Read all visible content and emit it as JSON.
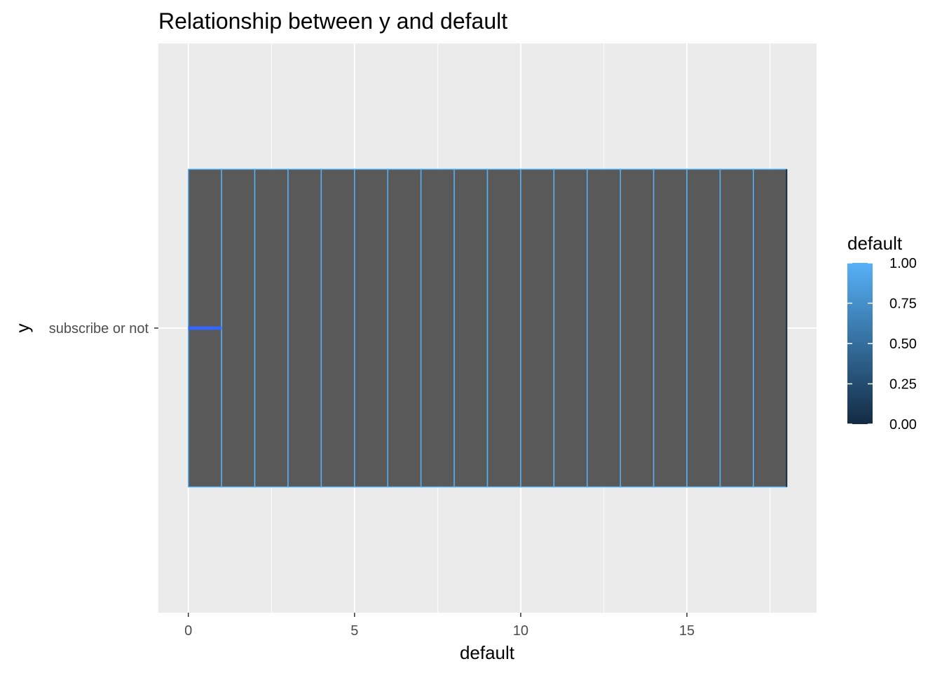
{
  "chart_data": {
    "type": "bar",
    "orientation": "horizontal",
    "title": "Relationship between y and default",
    "xlabel": "default",
    "ylabel": "y",
    "categories": [
      "subscribe or not"
    ],
    "xlim": [
      -0.9,
      18.9
    ],
    "x_ticks": [
      0,
      5,
      10,
      15
    ],
    "x_tick_labels": [
      "0",
      "5",
      "10",
      "15"
    ],
    "stack_segments": [
      0,
      1,
      2,
      3,
      4,
      5,
      6,
      7,
      8,
      9,
      10,
      11,
      12,
      13,
      14,
      15,
      16,
      17,
      18
    ],
    "segment_count": 18,
    "bar_fill": "#595959",
    "segment_outline_color": "#56B1F7",
    "highlight_segment": {
      "x_start": 0,
      "x_end": 1,
      "color": "#3366FF"
    },
    "grid": true,
    "panel_background": "#EBEBEB",
    "legend": {
      "title": "default",
      "placement": "right",
      "type": "colorbar",
      "low_color": "#132B43",
      "high_color": "#56B1F7",
      "ticks": [
        0.0,
        0.25,
        0.5,
        0.75,
        1.0
      ],
      "labels": [
        "0.00",
        "0.25",
        "0.50",
        "0.75",
        "1.00"
      ]
    }
  }
}
